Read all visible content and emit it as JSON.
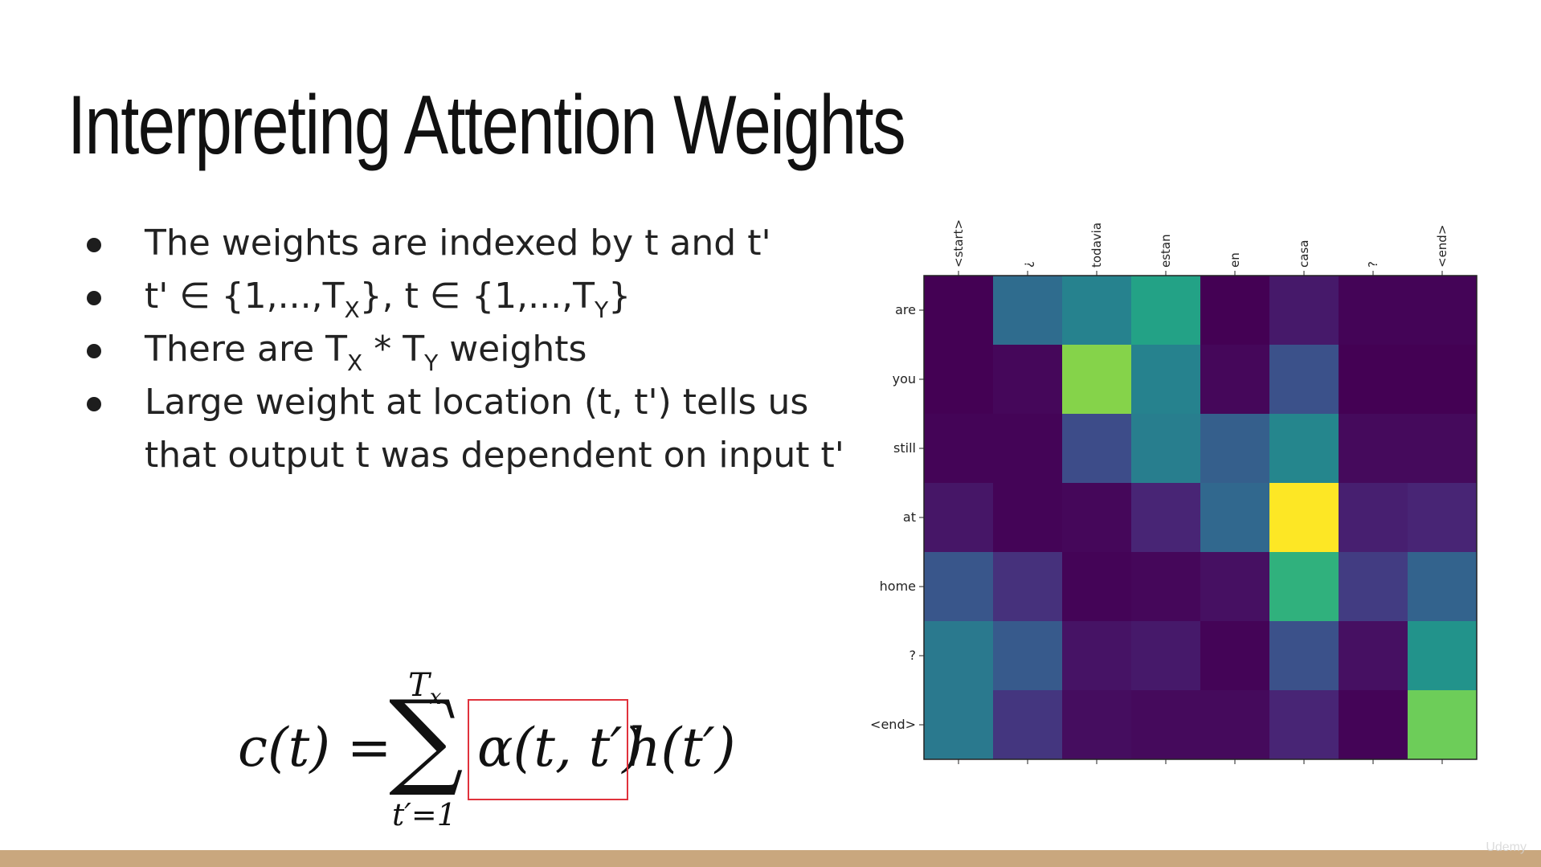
{
  "slide": {
    "title": "Interpreting Attention Weights",
    "bullets": [
      {
        "text": "The weights are indexed by t and t'"
      },
      {
        "prefix": "t' ∈ {1,...,T",
        "sub1": "X",
        "middle": "}, t ∈ {1,...,T",
        "sub2": "Y",
        "suffix": "}"
      },
      {
        "prefix": "There are T",
        "sub1": "X",
        "middle": " * T",
        "sub2": "Y",
        "suffix": " weights"
      },
      {
        "line1": "Large weight at location (t, t') tells us",
        "line2": "that output t was dependent on input t'"
      }
    ],
    "formula": {
      "lhs": "c(t) =",
      "sigma": "∑",
      "upper_base": "T",
      "upper_sub": "x",
      "lower": "t′=1",
      "alpha_term": "α(t, t′)",
      "h_term": "h(t′)",
      "highlight_color": "#e0323c"
    },
    "watermark": "Udemy"
  },
  "chart_data": {
    "type": "heatmap",
    "title": "",
    "xlabel": "",
    "ylabel": "",
    "x_labels": [
      "<start>",
      "¿",
      "todavia",
      "estan",
      "en",
      "casa",
      "?",
      "<end>"
    ],
    "y_labels": [
      "are",
      "you",
      "still",
      "at",
      "home",
      "?",
      "<end>"
    ],
    "colormap": "viridis",
    "value_range": [
      0,
      1
    ],
    "grid": false,
    "values": [
      [
        0.0,
        0.4,
        0.5,
        0.65,
        0.0,
        0.08,
        0.01,
        0.01
      ],
      [
        0.0,
        0.02,
        0.9,
        0.5,
        0.02,
        0.28,
        0.0,
        0.0
      ],
      [
        0.01,
        0.01,
        0.26,
        0.48,
        0.34,
        0.52,
        0.03,
        0.03
      ],
      [
        0.07,
        0.01,
        0.02,
        0.12,
        0.38,
        1.0,
        0.1,
        0.12
      ],
      [
        0.3,
        0.16,
        0.01,
        0.02,
        0.05,
        0.72,
        0.2,
        0.36
      ],
      [
        0.46,
        0.32,
        0.06,
        0.08,
        0.01,
        0.28,
        0.05,
        0.58
      ],
      [
        0.46,
        0.18,
        0.04,
        0.03,
        0.03,
        0.12,
        0.01,
        0.88
      ]
    ]
  }
}
